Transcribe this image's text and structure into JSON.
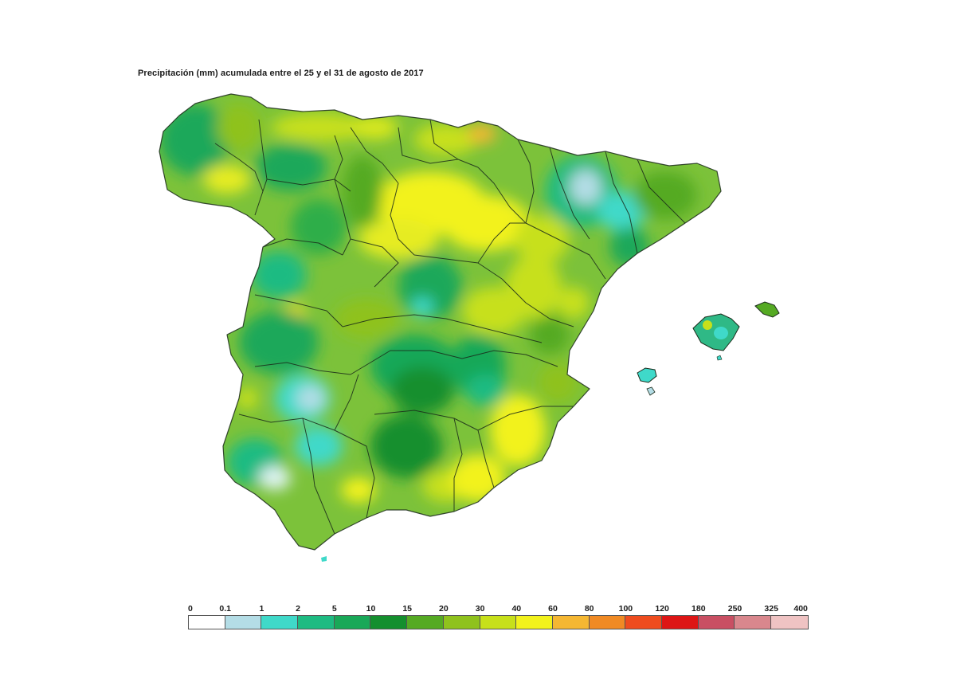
{
  "title": "Precipitación (mm) acumulada entre el 25 y el 31 de agosto de 2017",
  "legend": {
    "ticks": [
      "0",
      "0.1",
      "1",
      "2",
      "5",
      "10",
      "15",
      "20",
      "30",
      "40",
      "60",
      "80",
      "100",
      "120",
      "180",
      "250",
      "325",
      "400"
    ],
    "colors": [
      "#ffffff",
      "#b4dde6",
      "#3fd9c9",
      "#1ebb82",
      "#19a858",
      "#148f2e",
      "#55aa23",
      "#8fc21d",
      "#c7e01a",
      "#f2f21c",
      "#f5b732",
      "#f08a24",
      "#ee4c1e",
      "#dd1515",
      "#c94f63",
      "#d9878d",
      "#efc3c3"
    ]
  },
  "map": {
    "region": "Península Ibérica (España) y Baleares",
    "base_color": "#6cbd3a",
    "border_color": "#1a2a1a"
  }
}
